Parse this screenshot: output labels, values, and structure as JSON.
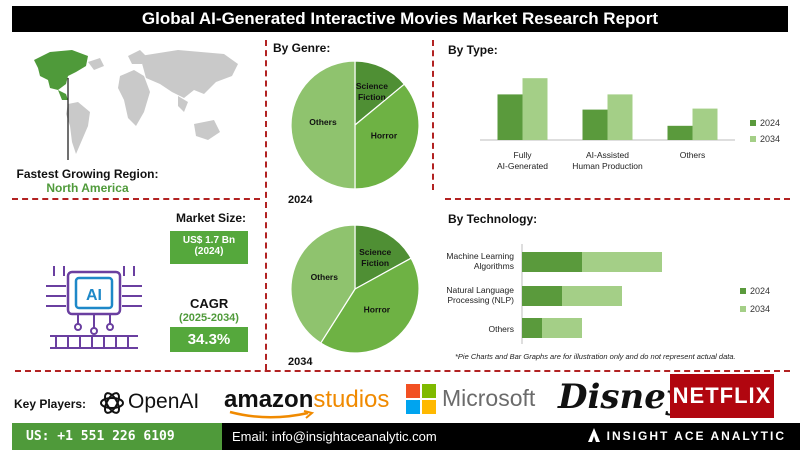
{
  "title": "Global AI-Generated Interactive Movies Market Research Report",
  "region": {
    "label": "Fastest Growing Region:",
    "value": "North America"
  },
  "market_size": {
    "label": "Market Size:",
    "value": "US$ 1.7 Bn",
    "year": "(2024)"
  },
  "cagr": {
    "label": "CAGR",
    "period": "(2025-2034)",
    "value": "34.3%"
  },
  "note": "*Pie Charts and Bar Graphs are for illustration only and do not represent actual data.",
  "key_players": {
    "label": "Key Players:",
    "openai": "OpenAI",
    "amazon_a": "amazon",
    "amazon_b": "studios",
    "microsoft": "Microsoft",
    "disney": "Disney",
    "netflix": "NETFLIX"
  },
  "footer": {
    "phone": "US: +1 551 226 6109",
    "email": "Email: info@insightaceanalytic.com",
    "brand": "INSIGHT ACE ANALYTIC"
  },
  "colors": {
    "dark_green": "#5a9a3c",
    "light_green": "#a4cf87",
    "pie_light": "#8fc36e",
    "pie_dark": "#4f8f34",
    "pie_mid": "#6eb244",
    "accent_red": "#b22222"
  },
  "chart_data": [
    {
      "type": "pie",
      "title": "By Genre:",
      "year_label": "2024",
      "labels": [
        "Science Fiction",
        "Horror",
        "Others"
      ],
      "values": [
        14,
        36,
        50
      ]
    },
    {
      "type": "pie",
      "year_label": "2034",
      "labels": [
        "Science Fiction",
        "Horror",
        "Others"
      ],
      "values": [
        17,
        42,
        41
      ]
    },
    {
      "type": "bar",
      "title": "By Type:",
      "categories": [
        "Fully AI-Generated",
        "AI-Assisted Human Production",
        "Others"
      ],
      "series": [
        {
          "name": "2024",
          "values": [
            45,
            30,
            14
          ]
        },
        {
          "name": "2034",
          "values": [
            61,
            45,
            31
          ]
        }
      ],
      "ylim": [
        0,
        75
      ]
    },
    {
      "type": "bar",
      "orientation": "horizontal",
      "title": "By Technology:",
      "categories": [
        "Machine Learning Algorithms",
        "Natural Language Processing (NLP)",
        "Others"
      ],
      "series": [
        {
          "name": "2024",
          "values": [
            60,
            40,
            20
          ]
        },
        {
          "name": "2034",
          "values": [
            140,
            100,
            60
          ]
        }
      ],
      "stacked": true,
      "xlim": [
        0,
        200
      ]
    }
  ]
}
